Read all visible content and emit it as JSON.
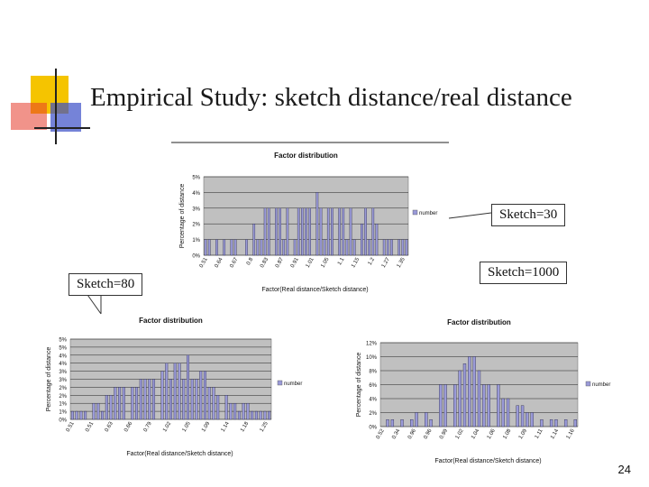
{
  "slide": {
    "title": "Empirical Study: sketch distance/real distance",
    "page_number": "24",
    "callouts": {
      "sketch30": "Sketch=30",
      "sketch1000": "Sketch=1000",
      "sketch80": "Sketch=80"
    }
  },
  "colors": {
    "logo_yellow": "#f5c400",
    "logo_red": "#e53a2a",
    "logo_blue": "#3a4fc8",
    "plot_bg": "#c0c0c0",
    "bar_fill": "#9a9ad8"
  },
  "chart_data": [
    {
      "type": "bar",
      "title": "Factor distribution",
      "xlabel": "Factor(Real distance/Sketch distance)",
      "ylabel": "Percentage of distance",
      "legend": [
        "number"
      ],
      "legend_position": "right",
      "y_ticks": [
        "0%",
        "1%",
        "2%",
        "3%",
        "4%",
        "5%"
      ],
      "ylim": [
        0,
        5
      ],
      "x_ticks": [
        "0.51",
        "0.64",
        "0.67",
        "0.8",
        "0.83",
        "0.87",
        "0.91",
        "1.01",
        "1.05",
        "1.1",
        "1.15",
        "1.2",
        "1.27",
        "1.35"
      ],
      "values": [
        1,
        1,
        0,
        1,
        0,
        1,
        0,
        1,
        1,
        0,
        0,
        1,
        0,
        2,
        1,
        1,
        3,
        3,
        0,
        3,
        3,
        1,
        3,
        0,
        1,
        3,
        3,
        3,
        3,
        0,
        4,
        3,
        1,
        3,
        3,
        0,
        3,
        3,
        1,
        3,
        1,
        0,
        2,
        3,
        1,
        3,
        2,
        0,
        1,
        1,
        1,
        0,
        1,
        1,
        1
      ]
    },
    {
      "type": "bar",
      "title": "Factor distribution",
      "xlabel": "Factor(Real distance/Sketch distance)",
      "ylabel": "Percentage of distance",
      "legend": [
        "number"
      ],
      "legend_position": "right",
      "y_ticks": [
        "0%",
        "1%",
        "1%",
        "2%",
        "2%",
        "3%",
        "3%",
        "4%",
        "4%",
        "5%",
        "5%"
      ],
      "ylim": [
        0,
        5
      ],
      "x_ticks": [
        "0.51",
        "0.51",
        "0.63",
        "0.66",
        "0.79",
        "1.02",
        "1.05",
        "1.09",
        "1.14",
        "1.18",
        "1.25"
      ],
      "values": [
        0.5,
        0.5,
        0.5,
        0.5,
        0,
        1,
        1,
        0.5,
        1.5,
        1.5,
        2,
        2,
        2,
        0,
        2,
        2,
        2.5,
        2.5,
        2.5,
        2.5,
        0,
        3,
        3.5,
        2.5,
        3.5,
        3.5,
        2.5,
        4,
        2.5,
        2.5,
        3,
        3,
        2,
        2,
        1.5,
        0,
        1.5,
        1,
        1,
        0.5,
        1,
        1,
        0.5,
        0.5,
        0.5,
        0.5,
        0.5
      ]
    },
    {
      "type": "bar",
      "title": "Factor distribution",
      "xlabel": "Factor(Real distance/Sketch distance)",
      "ylabel": "Percentage of distance",
      "legend": [
        "number"
      ],
      "legend_position": "right",
      "y_ticks": [
        "0%",
        "2%",
        "4%",
        "6%",
        "8%",
        "10%",
        "12%"
      ],
      "ylim": [
        0,
        12
      ],
      "x_ticks": [
        "0.52",
        "0.34",
        "0.96",
        "0.96",
        "0.99",
        "1.02",
        "1.04",
        "1.06",
        "1.08",
        "1.09",
        "1.11",
        "1.14",
        "1.16"
      ],
      "values": [
        0,
        1,
        1,
        0,
        1,
        0,
        1,
        2,
        0,
        2,
        1,
        0,
        6,
        6,
        0,
        6,
        8,
        9,
        10,
        10,
        8,
        6,
        6,
        0,
        6,
        4,
        4,
        0,
        3,
        3,
        2,
        2,
        0,
        1,
        0,
        1,
        1,
        0,
        1,
        0,
        1
      ]
    }
  ]
}
